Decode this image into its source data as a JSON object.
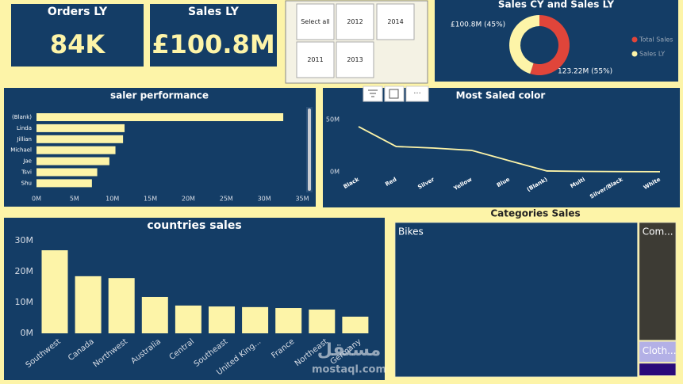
{
  "cards": [
    {
      "label": "Orders LY",
      "value": "84K"
    },
    {
      "label": "Sales LY",
      "value": "£100.8M"
    }
  ],
  "slicer": {
    "items": [
      "Select all",
      "2012",
      "2014",
      "2011",
      "2013"
    ]
  },
  "watermark": [
    "مستقل",
    "mostaql.com"
  ],
  "chart_data": [
    {
      "type": "pie",
      "title": "Sales CY and Sales LY",
      "donut": true,
      "categories": [
        "Total Sales",
        "Sales LY"
      ],
      "values": [
        123.22,
        100.8
      ],
      "value_labels": [
        "123.22M (55%)",
        "£100.8M (45%)"
      ],
      "colors": [
        "#e0453a",
        "#fdf4a8"
      ]
    },
    {
      "type": "bar",
      "orientation": "horizontal",
      "title": "saler performance",
      "categories": [
        "(Blank)",
        "Linda",
        "Jillian",
        "Michael",
        "Jae",
        "Tsvi",
        "Shu"
      ],
      "values": [
        32.5,
        11.6,
        11.4,
        10.4,
        9.6,
        8.0,
        7.3
      ],
      "color": "#fdf4a8",
      "xlim": [
        0,
        35
      ],
      "xticks": [
        {
          "value": 0,
          "label": "0M"
        },
        {
          "value": 5,
          "label": "5M"
        },
        {
          "value": 10,
          "label": "10M"
        },
        {
          "value": 15,
          "label": "15M"
        },
        {
          "value": 20,
          "label": "20M"
        },
        {
          "value": 25,
          "label": "25M"
        },
        {
          "value": 30,
          "label": "30M"
        },
        {
          "value": 35,
          "label": "35M"
        }
      ]
    },
    {
      "type": "line",
      "title": "Most Saled color",
      "categories": [
        "Black",
        "Red",
        "Silver",
        "Yellow",
        "Blue",
        "(Blank)",
        "Multi",
        "Silver/Black",
        "White"
      ],
      "values": [
        43.2,
        24.2,
        22.7,
        20.5,
        10.6,
        0.8,
        0.4,
        0.2,
        0.1
      ],
      "color": "#fdf4a8",
      "ylim": [
        0,
        58
      ],
      "yticks": [
        {
          "value": 0,
          "label": "0M"
        },
        {
          "value": 50,
          "label": "50M"
        }
      ]
    },
    {
      "type": "bar",
      "title": "countries sales",
      "categories": [
        "Southwest",
        "Canada",
        "Northwest",
        "Australia",
        "Central",
        "Southeast",
        "United King...",
        "France",
        "Northeast",
        "Germany"
      ],
      "values": [
        26.9,
        18.5,
        17.9,
        11.8,
        9.0,
        8.7,
        8.5,
        8.2,
        7.7,
        5.4
      ],
      "color": "#fdf4a8",
      "ylim": [
        0,
        33
      ],
      "yticks": [
        {
          "value": 0,
          "label": "0M"
        },
        {
          "value": 10,
          "label": "10M"
        },
        {
          "value": 20,
          "label": "20M"
        },
        {
          "value": 30,
          "label": "30M"
        }
      ]
    },
    {
      "type": "treemap",
      "title": "Categories Sales",
      "categories": [
        "Bikes",
        "Com...",
        "Cloth...",
        null
      ],
      "values": [
        106.2,
        13.1,
        2.4,
        1.5
      ],
      "colors": [
        "#143d66",
        "#3d3b34",
        "#b3b0e6",
        "#2a0a7a"
      ]
    }
  ]
}
